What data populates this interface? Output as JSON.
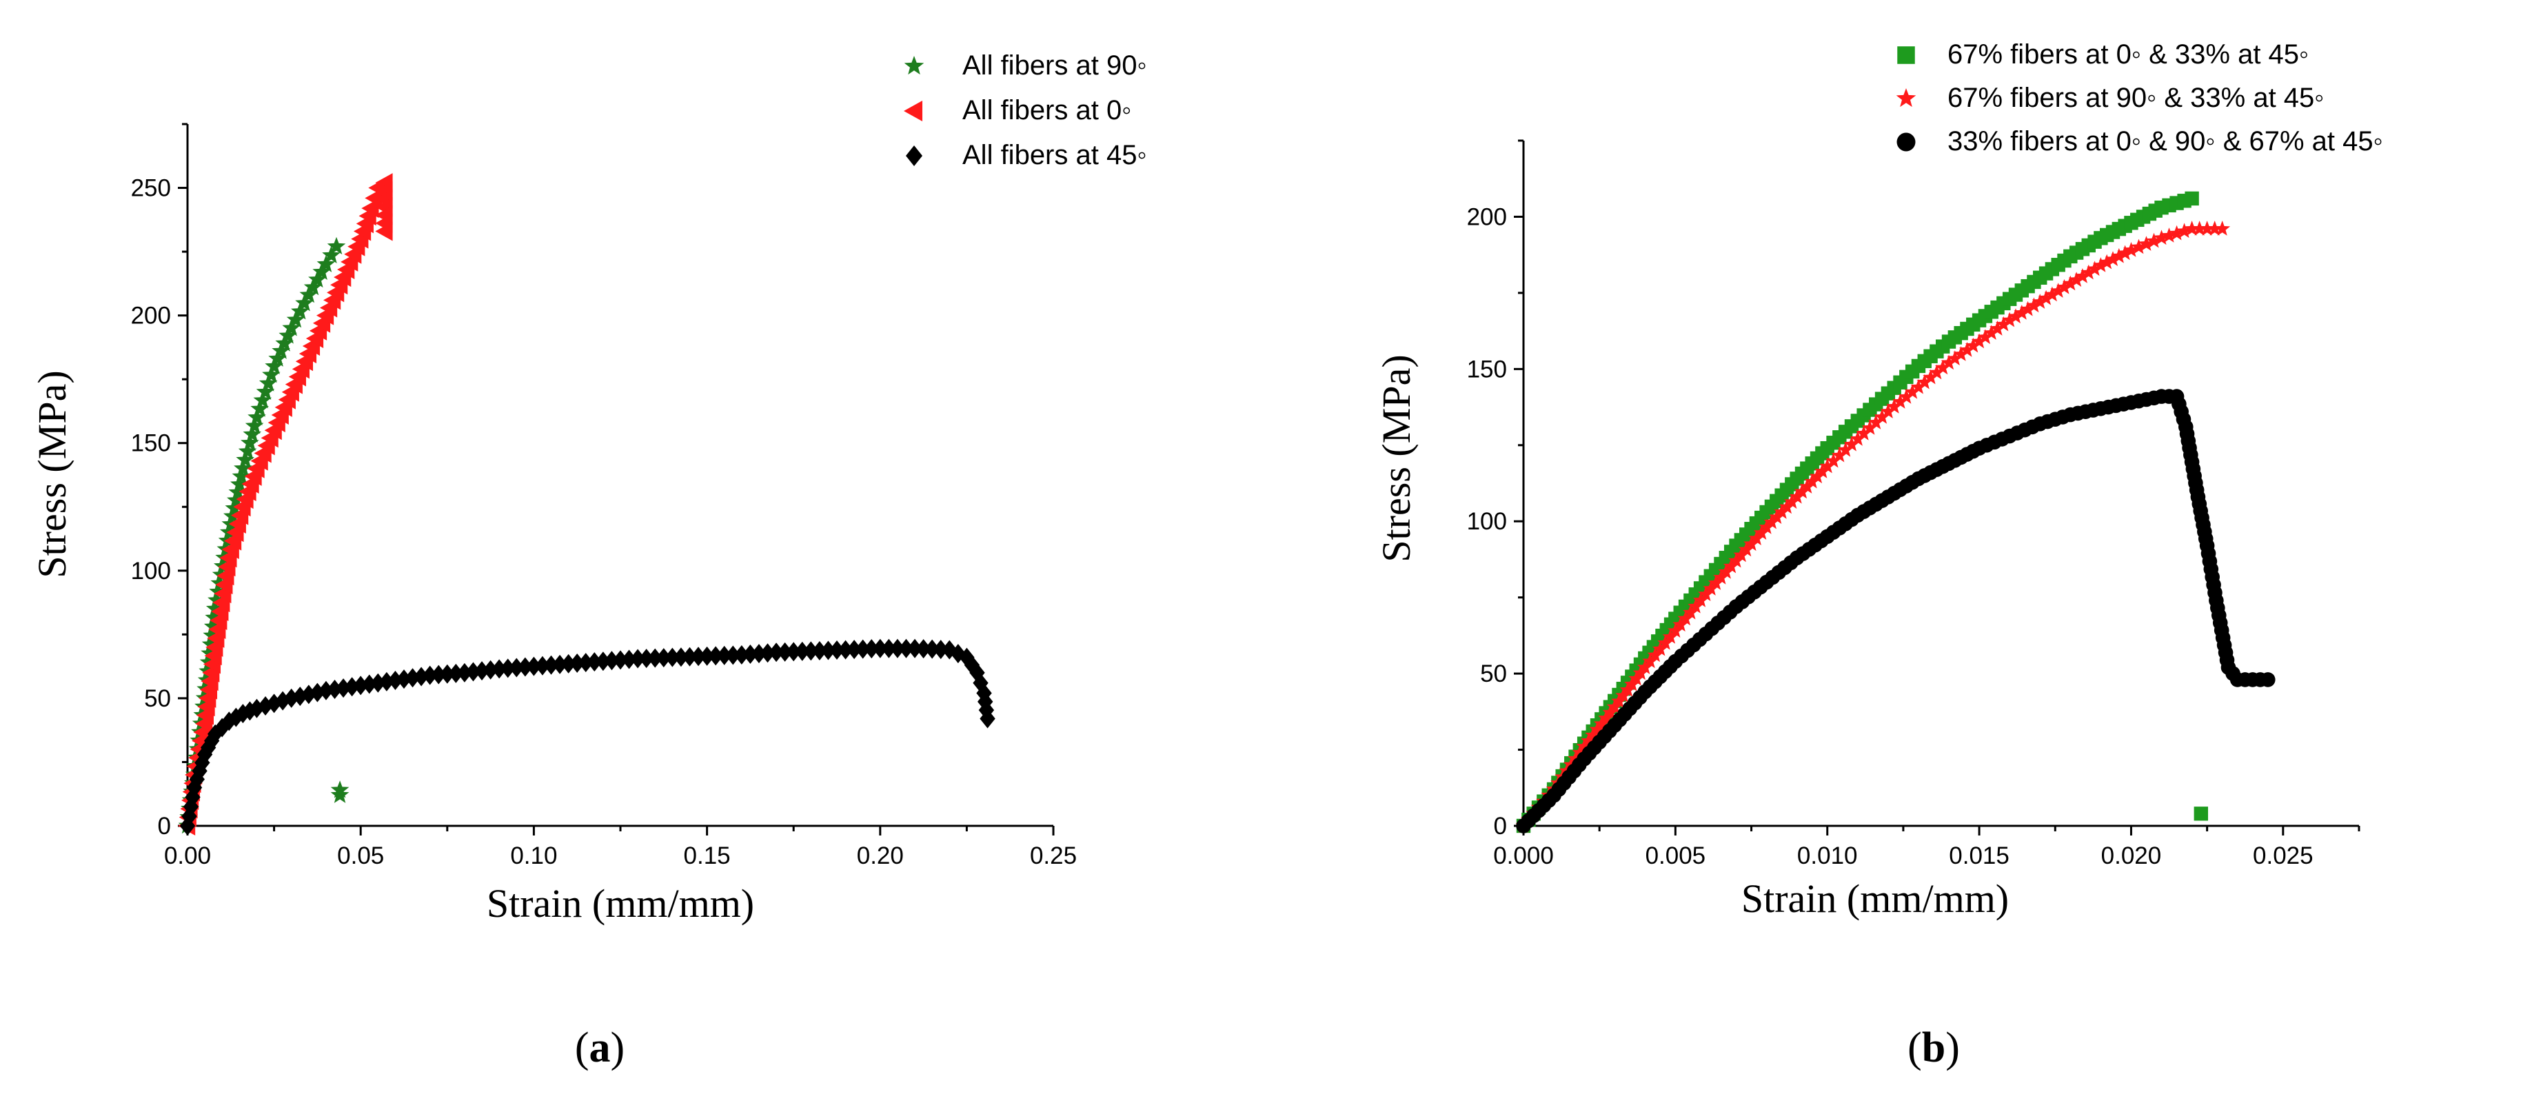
{
  "colors": {
    "green": "#1e7d1e",
    "red": "#ff1a1a",
    "black": "#000000"
  },
  "chart_data": [
    {
      "type": "scatter",
      "panel_label": "a",
      "xlabel": "Strain (mm/mm)",
      "ylabel": "Stress (MPa)",
      "xlim": [
        0,
        0.25
      ],
      "ylim": [
        0,
        275
      ],
      "x_ticks": [
        "0.00",
        "0.05",
        "0.10",
        "0.15",
        "0.20",
        "0.25"
      ],
      "y_ticks": [
        "0",
        "50",
        "100",
        "150",
        "200",
        "250"
      ],
      "legend_position": "top-right",
      "series": [
        {
          "name": "All fibers at 90◦",
          "marker": "star",
          "color": "#1e7d1e",
          "points": [
            [
              0,
              0
            ],
            [
              0.002,
              20
            ],
            [
              0.005,
              50
            ],
            [
              0.008,
              85
            ],
            [
              0.012,
              115
            ],
            [
              0.016,
              140
            ],
            [
              0.02,
              160
            ],
            [
              0.025,
              180
            ],
            [
              0.03,
              195
            ],
            [
              0.035,
              208
            ],
            [
              0.04,
              220
            ],
            [
              0.043,
              227
            ],
            [
              0.044,
              14
            ],
            [
              0.044,
              12
            ]
          ]
        },
        {
          "name": "All fibers at 0◦",
          "marker": "triangle-left",
          "color": "#ff1a1a",
          "points": [
            [
              0,
              0
            ],
            [
              0.002,
              20
            ],
            [
              0.005,
              40
            ],
            [
              0.008,
              70
            ],
            [
              0.012,
              105
            ],
            [
              0.016,
              125
            ],
            [
              0.02,
              140
            ],
            [
              0.025,
              155
            ],
            [
              0.03,
              170
            ],
            [
              0.035,
              185
            ],
            [
              0.04,
              200
            ],
            [
              0.045,
              215
            ],
            [
              0.05,
              230
            ],
            [
              0.053,
              242
            ],
            [
              0.055,
              250
            ],
            [
              0.057,
              252
            ],
            [
              0.057,
              233
            ]
          ]
        },
        {
          "name": "All fibers at 45◦",
          "marker": "diamond",
          "color": "#000000",
          "points": [
            [
              0,
              0
            ],
            [
              0.002,
              15
            ],
            [
              0.005,
              28
            ],
            [
              0.008,
              36
            ],
            [
              0.012,
              41
            ],
            [
              0.016,
              44
            ],
            [
              0.02,
              46
            ],
            [
              0.03,
              50
            ],
            [
              0.04,
              53
            ],
            [
              0.05,
              55
            ],
            [
              0.06,
              57
            ],
            [
              0.07,
              59
            ],
            [
              0.08,
              60
            ],
            [
              0.09,
              61.5
            ],
            [
              0.1,
              62.5
            ],
            [
              0.11,
              63.5
            ],
            [
              0.12,
              64.5
            ],
            [
              0.13,
              65.5
            ],
            [
              0.14,
              66
            ],
            [
              0.15,
              66.5
            ],
            [
              0.16,
              67
            ],
            [
              0.17,
              68
            ],
            [
              0.18,
              68.5
            ],
            [
              0.19,
              69
            ],
            [
              0.2,
              69.5
            ],
            [
              0.21,
              69.5
            ],
            [
              0.22,
              69
            ],
            [
              0.225,
              66
            ],
            [
              0.228,
              60
            ],
            [
              0.23,
              52
            ],
            [
              0.231,
              42
            ]
          ]
        }
      ]
    },
    {
      "type": "scatter",
      "panel_label": "b",
      "xlabel": "Strain (mm/mm)",
      "ylabel": "Stress (MPa)",
      "xlim": [
        0,
        0.0275
      ],
      "ylim": [
        0,
        225
      ],
      "x_ticks": [
        "0.000",
        "0.005",
        "0.010",
        "0.015",
        "0.020",
        "0.025"
      ],
      "y_ticks": [
        "0",
        "50",
        "100",
        "150",
        "200"
      ],
      "legend_position": "top",
      "series": [
        {
          "name": "67% fibers at 0◦ & 33% at 45◦",
          "marker": "square",
          "color": "#1e9b1e",
          "points": [
            [
              0,
              0
            ],
            [
              0.001,
              12
            ],
            [
              0.002,
              27
            ],
            [
              0.003,
              41
            ],
            [
              0.004,
              55
            ],
            [
              0.005,
              68
            ],
            [
              0.006,
              80
            ],
            [
              0.007,
              92
            ],
            [
              0.008,
              103
            ],
            [
              0.009,
              114
            ],
            [
              0.01,
              124
            ],
            [
              0.011,
              133
            ],
            [
              0.012,
              142
            ],
            [
              0.013,
              151
            ],
            [
              0.014,
              159
            ],
            [
              0.015,
              166
            ],
            [
              0.016,
              173
            ],
            [
              0.017,
              180
            ],
            [
              0.018,
              187
            ],
            [
              0.019,
              193
            ],
            [
              0.02,
              198
            ],
            [
              0.021,
              203
            ],
            [
              0.022,
              206
            ],
            [
              0.0223,
              4
            ]
          ]
        },
        {
          "name": "67% fibers at 90◦ & 33% at 45◦",
          "marker": "star",
          "color": "#ff1a1a",
          "points": [
            [
              0,
              0
            ],
            [
              0.001,
              12
            ],
            [
              0.002,
              26
            ],
            [
              0.003,
              39
            ],
            [
              0.004,
              52
            ],
            [
              0.005,
              64
            ],
            [
              0.006,
              76
            ],
            [
              0.007,
              87
            ],
            [
              0.008,
              98
            ],
            [
              0.009,
              108
            ],
            [
              0.01,
              118
            ],
            [
              0.011,
              127
            ],
            [
              0.012,
              136
            ],
            [
              0.013,
              144
            ],
            [
              0.014,
              152
            ],
            [
              0.015,
              159
            ],
            [
              0.016,
              166
            ],
            [
              0.017,
              172
            ],
            [
              0.018,
              178
            ],
            [
              0.019,
              184
            ],
            [
              0.02,
              189
            ],
            [
              0.021,
              193
            ],
            [
              0.022,
              196
            ],
            [
              0.023,
              196
            ]
          ]
        },
        {
          "name": "33% fibers at 0◦  & 90◦ & 67% at 45◦",
          "marker": "circle",
          "color": "#000000",
          "points": [
            [
              0,
              0
            ],
            [
              0.001,
              10
            ],
            [
              0.002,
              22
            ],
            [
              0.003,
              33
            ],
            [
              0.004,
              44
            ],
            [
              0.005,
              54
            ],
            [
              0.006,
              63
            ],
            [
              0.007,
              72
            ],
            [
              0.008,
              80
            ],
            [
              0.009,
              88
            ],
            [
              0.01,
              95
            ],
            [
              0.011,
              102
            ],
            [
              0.012,
              108
            ],
            [
              0.013,
              114
            ],
            [
              0.014,
              119
            ],
            [
              0.015,
              124
            ],
            [
              0.016,
              128
            ],
            [
              0.017,
              132
            ],
            [
              0.018,
              135
            ],
            [
              0.019,
              137
            ],
            [
              0.02,
              139
            ],
            [
              0.021,
              141
            ],
            [
              0.0215,
              141
            ],
            [
              0.0218,
              131
            ],
            [
              0.0222,
              108
            ],
            [
              0.0225,
              92
            ],
            [
              0.0228,
              74
            ],
            [
              0.0232,
              52
            ],
            [
              0.0235,
              48
            ],
            [
              0.024,
              48
            ],
            [
              0.0245,
              48
            ]
          ]
        }
      ]
    }
  ]
}
